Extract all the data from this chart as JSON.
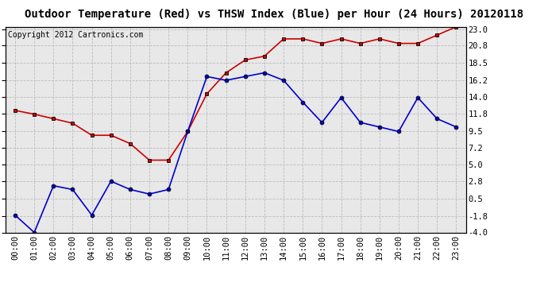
{
  "title": "Outdoor Temperature (Red) vs THSW Index (Blue) per Hour (24 Hours) 20120118",
  "copyright": "Copyright 2012 Cartronics.com",
  "hours": [
    "00:00",
    "01:00",
    "02:00",
    "03:00",
    "04:00",
    "05:00",
    "06:00",
    "07:00",
    "08:00",
    "09:00",
    "10:00",
    "11:00",
    "12:00",
    "13:00",
    "14:00",
    "15:00",
    "16:00",
    "17:00",
    "18:00",
    "19:00",
    "20:00",
    "21:00",
    "22:00",
    "23:00"
  ],
  "red_data": [
    12.2,
    11.7,
    11.1,
    10.5,
    8.9,
    8.9,
    7.8,
    5.6,
    5.6,
    9.4,
    14.4,
    17.2,
    18.9,
    19.4,
    21.7,
    21.7,
    21.1,
    21.7,
    21.1,
    21.7,
    21.1,
    21.1,
    22.2,
    23.3
  ],
  "blue_data": [
    -1.7,
    -4.0,
    2.2,
    1.7,
    -1.7,
    2.8,
    1.7,
    1.1,
    1.7,
    9.4,
    16.7,
    16.2,
    16.7,
    17.2,
    16.2,
    13.3,
    10.6,
    13.9,
    10.6,
    10.0,
    9.4,
    13.9,
    11.1,
    10.0
  ],
  "ylim": [
    -4.0,
    23.3
  ],
  "yticks_right": [
    23.0,
    20.8,
    18.5,
    16.2,
    14.0,
    11.8,
    9.5,
    7.2,
    5.0,
    2.8,
    0.5,
    -1.8,
    -4.0
  ],
  "red_color": "#cc0000",
  "blue_color": "#0000cc",
  "marker_face_red": "#cc0000",
  "marker_face_blue": "#0000cc",
  "marker_edge_color": "#000000",
  "bg_color": "#ffffff",
  "plot_bg_color": "#e8e8e8",
  "grid_color": "#bbbbbb",
  "title_fontsize": 10,
  "tick_fontsize": 7.5,
  "copyright_fontsize": 7
}
